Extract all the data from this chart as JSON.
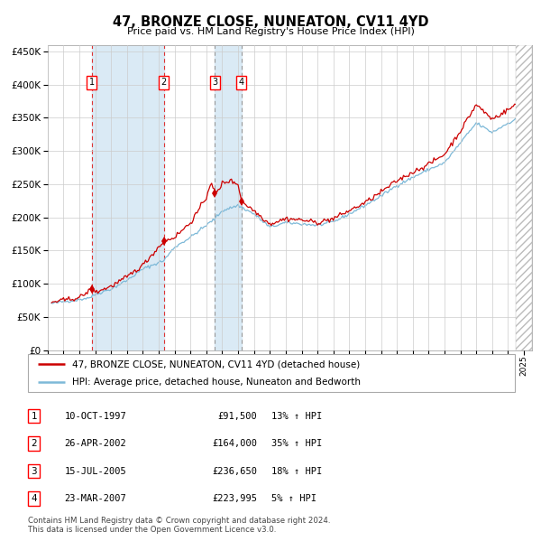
{
  "title": "47, BRONZE CLOSE, NUNEATON, CV11 4YD",
  "subtitle": "Price paid vs. HM Land Registry's House Price Index (HPI)",
  "footer": "Contains HM Land Registry data © Crown copyright and database right 2024.\nThis data is licensed under the Open Government Licence v3.0.",
  "legend_line1": "47, BRONZE CLOSE, NUNEATON, CV11 4YD (detached house)",
  "legend_line2": "HPI: Average price, detached house, Nuneaton and Bedworth",
  "purchases": [
    {
      "label": "1",
      "date": "10-OCT-1997",
      "price": 91500,
      "pct": "13%",
      "dir": "↑",
      "x_year": 1997.78
    },
    {
      "label": "2",
      "date": "26-APR-2002",
      "price": 164000,
      "pct": "35%",
      "dir": "↑",
      "x_year": 2002.32
    },
    {
      "label": "3",
      "date": "15-JUL-2005",
      "price": 236650,
      "pct": "18%",
      "dir": "↑",
      "x_year": 2005.54
    },
    {
      "label": "4",
      "date": "23-MAR-2007",
      "price": 223995,
      "pct": "5%",
      "dir": "↑",
      "x_year": 2007.22
    }
  ],
  "hpi_color": "#7db9d8",
  "price_color": "#cc0000",
  "bg_color": "#ffffff",
  "grid_color": "#cccccc",
  "shade_color": "#daeaf5",
  "ylim": [
    0,
    460000
  ],
  "xlim_start": 1995.25,
  "xlim_end": 2025.5,
  "hatch_start": 2024.5
}
